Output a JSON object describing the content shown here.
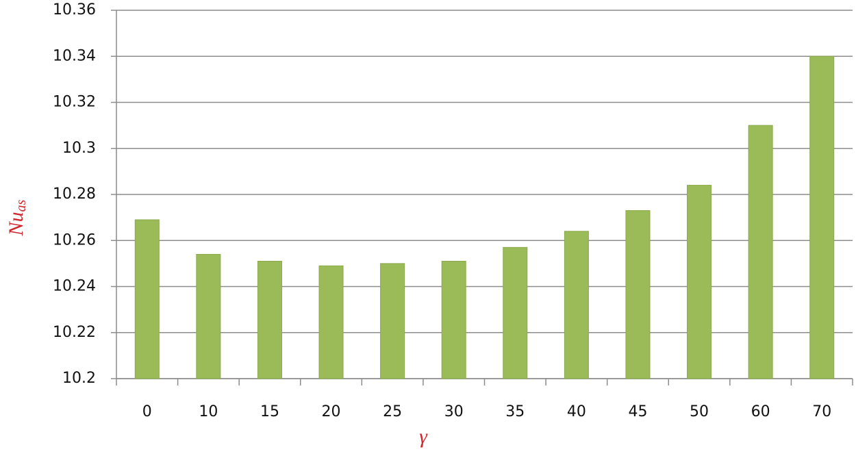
{
  "chart_data": {
    "type": "bar",
    "xlabel": "γ",
    "ylabel": {
      "text": "Nu",
      "subscript": "as"
    },
    "categories": [
      "0",
      "10",
      "15",
      "20",
      "25",
      "30",
      "35",
      "40",
      "45",
      "50",
      "60",
      "70"
    ],
    "values": [
      10.269,
      10.254,
      10.251,
      10.249,
      10.25,
      10.251,
      10.257,
      10.264,
      10.273,
      10.284,
      10.31,
      10.34
    ],
    "color": "#9bbb59",
    "ylim": [
      10.2,
      10.36
    ],
    "yticks": [
      10.2,
      10.22,
      10.24,
      10.26,
      10.28,
      10.3,
      10.32,
      10.34,
      10.36
    ],
    "grid": true
  }
}
